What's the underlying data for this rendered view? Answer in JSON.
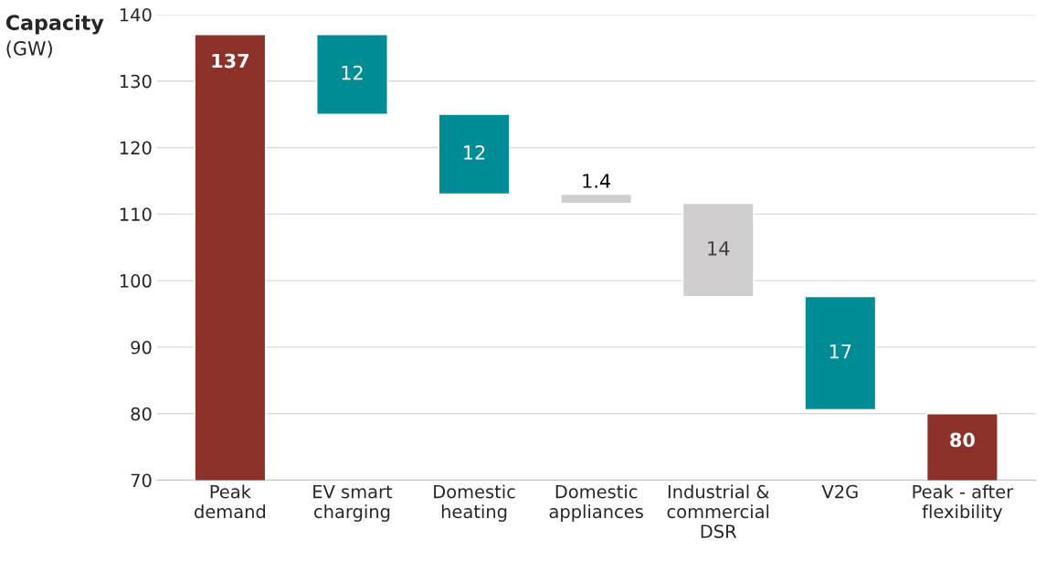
{
  "chart_data": {
    "type": "bar",
    "ylabel": "Capacity (GW)",
    "categories": [
      "Peak\ndemand",
      "EV smart\ncharging",
      "Domestic\nheating",
      "Domestic\nappliances",
      "Industrial &\ncommercial\nDSR",
      "V2G",
      "Peak - after\nflexibility"
    ],
    "values": [
      137,
      12,
      12,
      1.4,
      14,
      17,
      80
    ],
    "base": [
      0,
      125,
      113,
      111.6,
      97.6,
      80.6,
      0
    ],
    "colors": [
      "#8b3129",
      "#008c95",
      "#008c95",
      "#d0cece",
      "#d0cece",
      "#008c95",
      "#8b3129"
    ],
    "data_labels": true,
    "ylim": [
      70,
      140
    ],
    "yticks": [
      70,
      80,
      90,
      100,
      110,
      120,
      130,
      140
    ],
    "grid": "y"
  }
}
